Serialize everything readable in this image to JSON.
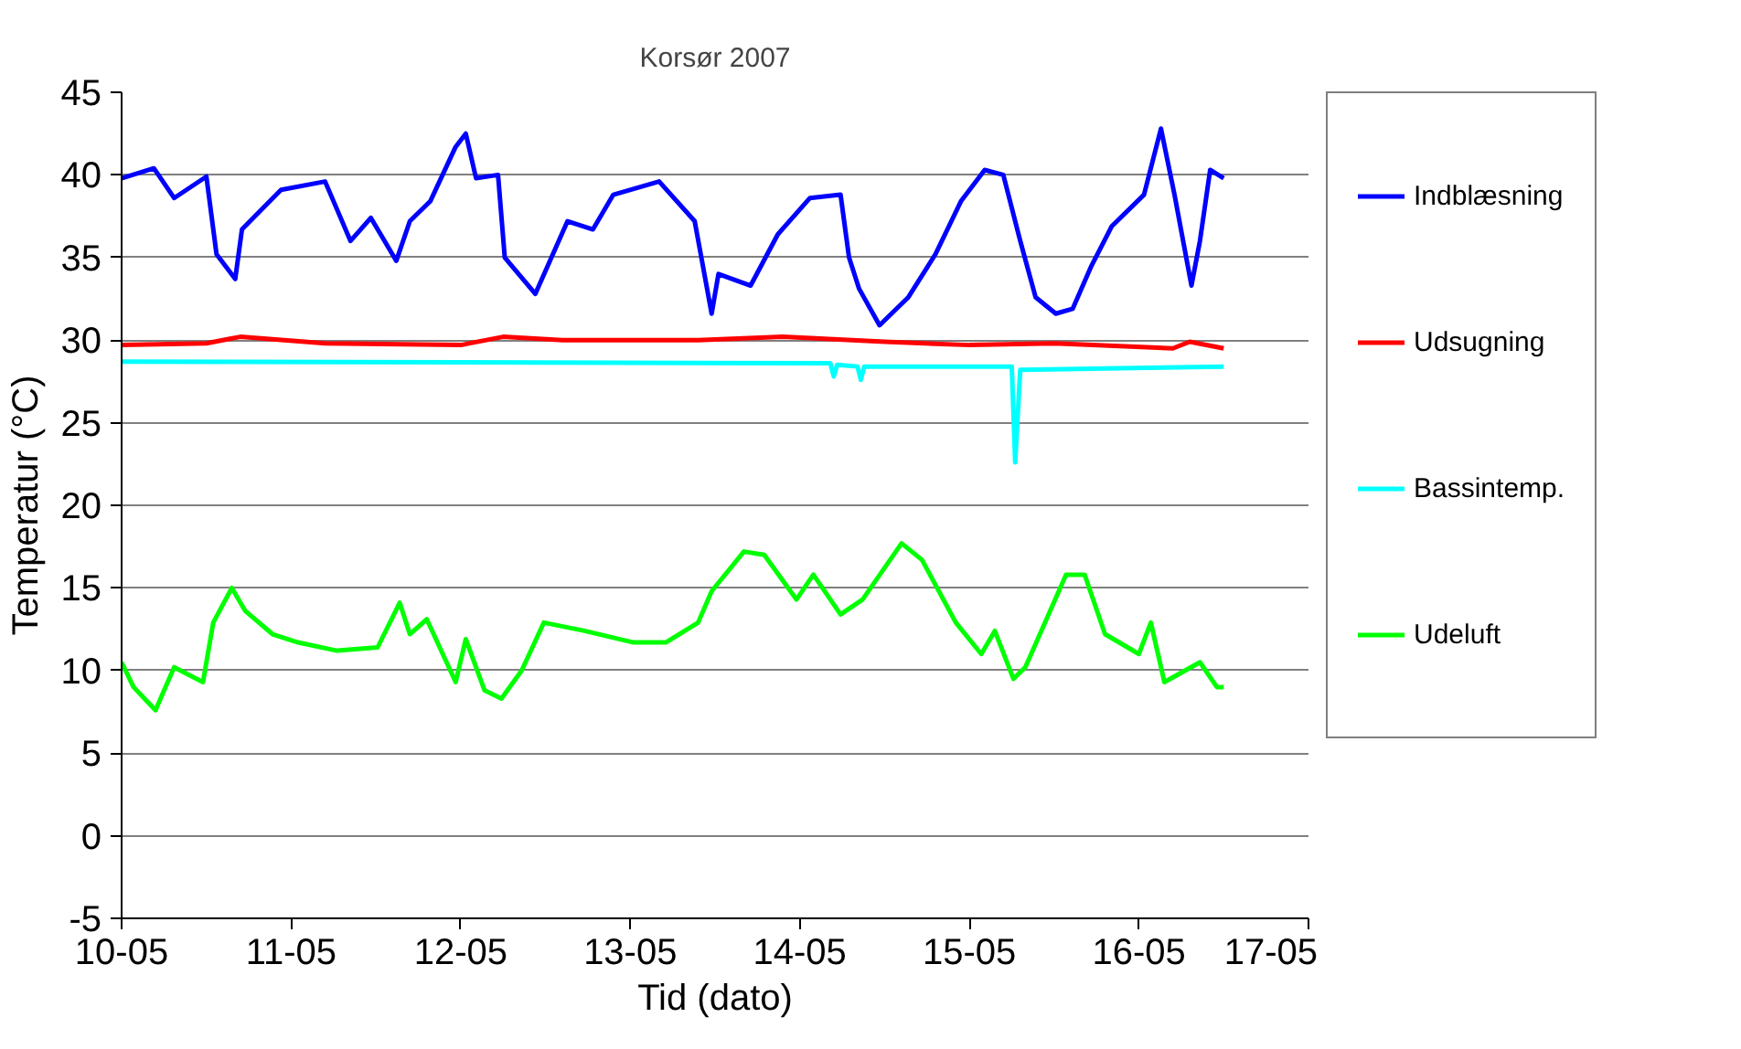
{
  "chart_data": {
    "type": "line",
    "title": "Korsør 2007",
    "xlabel": "Tid (dato)",
    "ylabel": "Temperatur (°C)",
    "xlim": [
      "2007-05-10",
      "2007-05-17"
    ],
    "xticks": [
      {
        "value": "2007-05-10",
        "label": "10-05"
      },
      {
        "value": "2007-05-11",
        "label": "11-05"
      },
      {
        "value": "2007-05-12",
        "label": "12-05"
      },
      {
        "value": "2007-05-13",
        "label": "13-05"
      },
      {
        "value": "2007-05-14",
        "label": "14-05"
      },
      {
        "value": "2007-05-15",
        "label": "15-05"
      },
      {
        "value": "2007-05-16",
        "label": "16-05"
      },
      {
        "value": "2007-05-17",
        "label": "17-05"
      }
    ],
    "ylim": [
      -5,
      45
    ],
    "yticks": [
      -5,
      0,
      5,
      10,
      15,
      20,
      25,
      30,
      35,
      40,
      45
    ],
    "grid": "y",
    "legend": "right",
    "line_style": "solid",
    "series": [
      {
        "name": "Indblæsning",
        "color": "#0000ff",
        "x": [
          "2007-05-10T00:00",
          "2007-05-10T04:34",
          "2007-05-10T07:26",
          "2007-05-10T12:00",
          "2007-05-10T13:26",
          "2007-05-10T16:05",
          "2007-05-10T17:02",
          "2007-05-10T22:34",
          "2007-05-11T04:48",
          "2007-05-11T08:24",
          "2007-05-11T11:17",
          "2007-05-11T14:53",
          "2007-05-11T16:48",
          "2007-05-11T19:41",
          "2007-05-11T23:17",
          "2007-05-12T00:43",
          "2007-05-12T02:10",
          "2007-05-12T05:17",
          "2007-05-12T06:14",
          "2007-05-12T10:34",
          "2007-05-12T15:07",
          "2007-05-12T18:43",
          "2007-05-12T21:36",
          "2007-05-13T04:05",
          "2007-05-13T09:07",
          "2007-05-13T11:31",
          "2007-05-13T12:29",
          "2007-05-13T17:02",
          "2007-05-13T20:53",
          "2007-05-14T01:26",
          "2007-05-14T05:46",
          "2007-05-14T06:58",
          "2007-05-14T08:24",
          "2007-05-14T11:17",
          "2007-05-14T15:22",
          "2007-05-14T19:12",
          "2007-05-14T22:48",
          "2007-05-15T02:10",
          "2007-05-15T04:48",
          "2007-05-15T07:12",
          "2007-05-15T09:22",
          "2007-05-15T12:14",
          "2007-05-15T14:38",
          "2007-05-15T17:17",
          "2007-05-15T20:10",
          "2007-05-16T00:43",
          "2007-05-16T03:07",
          "2007-05-16T05:02",
          "2007-05-16T07:26",
          "2007-05-16T08:38",
          "2007-05-16T10:05",
          "2007-05-16T12:00"
        ],
        "values": [
          39.8,
          40.4,
          38.6,
          39.9,
          35.2,
          33.7,
          36.7,
          39.1,
          39.6,
          36,
          37.4,
          34.8,
          37.2,
          38.4,
          41.7,
          42.5,
          39.8,
          40,
          35,
          32.8,
          37.2,
          36.7,
          38.8,
          39.6,
          37.2,
          31.6,
          34,
          33.3,
          36.4,
          38.6,
          38.8,
          35,
          33.1,
          30.9,
          32.6,
          35.2,
          38.4,
          40.3,
          40,
          36,
          32.6,
          31.6,
          31.9,
          34.5,
          36.9,
          38.8,
          42.8,
          38.8,
          33.3,
          36,
          40.3,
          39.8
        ]
      },
      {
        "name": "Udsugning",
        "color": "#ff0000",
        "x": [
          "2007-05-10T00:00",
          "2007-05-10T12:00",
          "2007-05-10T16:48",
          "2007-05-11T04:48",
          "2007-05-12T00:00",
          "2007-05-12T06:00",
          "2007-05-12T14:24",
          "2007-05-13T09:36",
          "2007-05-13T21:36",
          "2007-05-14T12:00",
          "2007-05-15T00:00",
          "2007-05-15T12:00",
          "2007-05-16T04:48",
          "2007-05-16T07:12",
          "2007-05-16T12:00"
        ],
        "values": [
          29.7,
          29.8,
          30.2,
          29.8,
          29.7,
          30.2,
          30.0,
          30.0,
          30.2,
          29.9,
          29.7,
          29.8,
          29.5,
          29.9,
          29.5
        ]
      },
      {
        "name": "Bassintemp.",
        "color": "#00ffff",
        "x": [
          "2007-05-10T00:00",
          "2007-05-14T04:19",
          "2007-05-14T04:48",
          "2007-05-14T05:17",
          "2007-05-14T08:10",
          "2007-05-14T08:38",
          "2007-05-14T09:07",
          "2007-05-15T06:00",
          "2007-05-15T06:29",
          "2007-05-15T07:12",
          "2007-05-16T12:00"
        ],
        "values": [
          28.7,
          28.6,
          27.8,
          28.5,
          28.4,
          27.6,
          28.4,
          28.4,
          22.6,
          28.2,
          28.4
        ]
      },
      {
        "name": "Udeluft",
        "color": "#00ff00",
        "x": [
          "2007-05-10T00:00",
          "2007-05-10T01:41",
          "2007-05-10T04:48",
          "2007-05-10T07:26",
          "2007-05-10T11:31",
          "2007-05-10T12:58",
          "2007-05-10T15:36",
          "2007-05-10T17:31",
          "2007-05-10T21:22",
          "2007-05-11T00:58",
          "2007-05-11T06:29",
          "2007-05-11T12:14",
          "2007-05-11T15:22",
          "2007-05-11T16:48",
          "2007-05-11T19:12",
          "2007-05-11T23:17",
          "2007-05-12T00:43",
          "2007-05-12T03:22",
          "2007-05-12T05:46",
          "2007-05-12T08:38",
          "2007-05-12T11:46",
          "2007-05-12T17:31",
          "2007-05-13T00:29",
          "2007-05-13T05:02",
          "2007-05-13T09:36",
          "2007-05-13T11:31",
          "2007-05-13T16:05",
          "2007-05-13T18:58",
          "2007-05-13T23:31",
          "2007-05-14T01:55",
          "2007-05-14T05:46",
          "2007-05-14T08:53",
          "2007-05-14T14:24",
          "2007-05-14T17:17",
          "2007-05-14T22:05",
          "2007-05-15T01:41",
          "2007-05-15T03:36",
          "2007-05-15T06:14",
          "2007-05-15T07:55",
          "2007-05-15T13:41",
          "2007-05-15T16:19",
          "2007-05-15T19:12",
          "2007-05-16T00:00",
          "2007-05-16T01:41",
          "2007-05-16T03:36",
          "2007-05-16T08:38",
          "2007-05-16T11:02",
          "2007-05-16T12:00"
        ],
        "values": [
          10.5,
          9,
          7.6,
          10.2,
          9.3,
          12.9,
          15,
          13.6,
          12.2,
          11.7,
          11.2,
          11.4,
          14.1,
          12.2,
          13.1,
          9.3,
          11.9,
          8.8,
          8.3,
          10,
          12.9,
          12.4,
          11.7,
          11.7,
          12.9,
          14.8,
          17.2,
          17,
          14.3,
          15.8,
          13.4,
          14.3,
          17.7,
          16.7,
          12.9,
          11,
          12.4,
          9.5,
          10.2,
          15.8,
          15.8,
          12.2,
          11,
          12.9,
          9.3,
          10.5,
          9,
          9
        ]
      }
    ]
  }
}
